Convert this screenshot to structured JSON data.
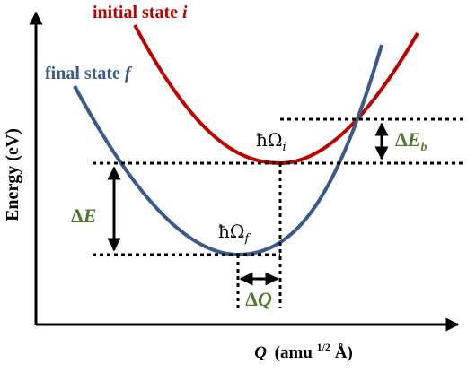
{
  "diagram": {
    "axes": {
      "y_label": "Energy (eV)",
      "x_label_var": "Q",
      "x_label_open": "(amu",
      "x_label_sup": "1/2",
      "x_label_close": "Å)"
    },
    "curves": {
      "initial": {
        "label_text": "initial state ",
        "label_var": "i",
        "color": "#c00000"
      },
      "final": {
        "label_text": "final state ",
        "label_var": "f",
        "color": "#3a5a8c"
      }
    },
    "levels": {
      "initial_min_label": "ħΩ",
      "initial_min_sub": "i",
      "final_min_label": "ħΩ",
      "final_min_sub": "f"
    },
    "arrows": {
      "delta_e": {
        "sym": "Δ",
        "var": "E",
        "color": "#4f7a2a"
      },
      "delta_eb": {
        "sym": "Δ",
        "var": "E",
        "sub": "b",
        "color": "#4f7a2a"
      },
      "delta_q": {
        "sym": "Δ",
        "var": "Q",
        "color": "#4f7a2a"
      }
    }
  }
}
